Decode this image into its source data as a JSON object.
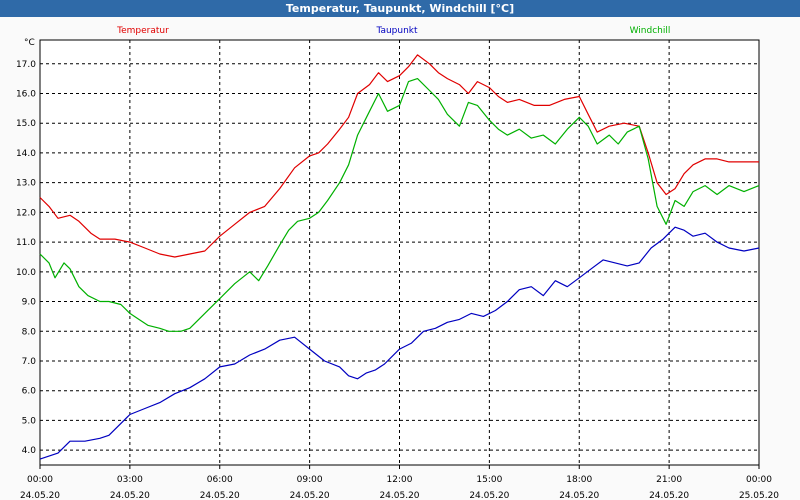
{
  "window": {
    "title": "Temperatur, Taupunkt, Windchill [°C]"
  },
  "colors": {
    "background": "#fafafa",
    "grid": "#000000",
    "temperature": "#e00000",
    "dewpoint": "#0000c0",
    "windchill": "#00b000"
  },
  "chart_data": {
    "type": "line",
    "title": "Temperatur, Taupunkt, Windchill [°C]",
    "ylabel": "°C",
    "ylim": [
      3.5,
      17.8
    ],
    "xlim": [
      0,
      24
    ],
    "yticks": [
      "4.0",
      "5.0",
      "6.0",
      "7.0",
      "8.0",
      "9.0",
      "10.0",
      "11.0",
      "12.0",
      "13.0",
      "14.0",
      "15.0",
      "16.0",
      "17.0"
    ],
    "xticks": [
      {
        "t": 0,
        "time": "00:00",
        "date": "24.05.20"
      },
      {
        "t": 3,
        "time": "03:00",
        "date": "24.05.20"
      },
      {
        "t": 6,
        "time": "06:00",
        "date": "24.05.20"
      },
      {
        "t": 9,
        "time": "09:00",
        "date": "24.05.20"
      },
      {
        "t": 12,
        "time": "12:00",
        "date": "24.05.20"
      },
      {
        "t": 15,
        "time": "15:00",
        "date": "24.05.20"
      },
      {
        "t": 18,
        "time": "18:00",
        "date": "24.05.20"
      },
      {
        "t": 21,
        "time": "21:00",
        "date": "24.05.20"
      },
      {
        "t": 24,
        "time": "00:00",
        "date": "25.05.20"
      }
    ],
    "grid": true,
    "series": [
      {
        "name": "Temperatur",
        "x": [
          0,
          0.3,
          0.6,
          1,
          1.3,
          1.7,
          2,
          2.5,
          3,
          3.5,
          4,
          4.5,
          5,
          5.5,
          6,
          6.5,
          7,
          7.5,
          8,
          8.5,
          9,
          9.3,
          9.6,
          10,
          10.3,
          10.6,
          11,
          11.3,
          11.6,
          12,
          12.3,
          12.6,
          13,
          13.3,
          13.6,
          14,
          14.3,
          14.6,
          15,
          15.3,
          15.6,
          16,
          16.5,
          17,
          17.5,
          18,
          18.3,
          18.6,
          19,
          19.5,
          20,
          20.3,
          20.6,
          20.9,
          21.2,
          21.5,
          21.8,
          22.2,
          22.6,
          23,
          23.5,
          24
        ],
        "values": [
          12.5,
          12.2,
          11.8,
          11.9,
          11.7,
          11.3,
          11.1,
          11.1,
          11.0,
          10.8,
          10.6,
          10.5,
          10.6,
          10.7,
          11.2,
          11.6,
          12.0,
          12.2,
          12.8,
          13.5,
          13.9,
          14.0,
          14.3,
          14.8,
          15.2,
          16.0,
          16.3,
          16.7,
          16.4,
          16.6,
          16.9,
          17.3,
          17.0,
          16.7,
          16.5,
          16.3,
          16.0,
          16.4,
          16.2,
          15.9,
          15.7,
          15.8,
          15.6,
          15.6,
          15.8,
          15.9,
          15.3,
          14.7,
          14.9,
          15.0,
          14.9,
          14.0,
          13.0,
          12.6,
          12.8,
          13.3,
          13.6,
          13.8,
          13.8,
          13.7,
          13.7,
          13.7
        ]
      },
      {
        "name": "Taupunkt",
        "x": [
          0,
          0.3,
          0.6,
          1,
          1.5,
          2,
          2.3,
          2.7,
          3,
          3.5,
          4,
          4.5,
          5,
          5.5,
          6,
          6.5,
          7,
          7.5,
          8,
          8.5,
          9,
          9.5,
          10,
          10.3,
          10.6,
          10.9,
          11.2,
          11.5,
          12,
          12.4,
          12.8,
          13.2,
          13.6,
          14,
          14.4,
          14.8,
          15.2,
          15.6,
          16,
          16.4,
          16.8,
          17.2,
          17.6,
          18,
          18.4,
          18.8,
          19.2,
          19.6,
          20,
          20.4,
          20.8,
          21.2,
          21.5,
          21.8,
          22.2,
          22.6,
          23,
          23.5,
          24
        ],
        "values": [
          3.7,
          3.8,
          3.9,
          4.3,
          4.3,
          4.4,
          4.5,
          4.9,
          5.2,
          5.4,
          5.6,
          5.9,
          6.1,
          6.4,
          6.8,
          6.9,
          7.2,
          7.4,
          7.7,
          7.8,
          7.4,
          7.0,
          6.8,
          6.5,
          6.4,
          6.6,
          6.7,
          6.9,
          7.4,
          7.6,
          8.0,
          8.1,
          8.3,
          8.4,
          8.6,
          8.5,
          8.7,
          9.0,
          9.4,
          9.5,
          9.2,
          9.7,
          9.5,
          9.8,
          10.1,
          10.4,
          10.3,
          10.2,
          10.3,
          10.8,
          11.1,
          11.5,
          11.4,
          11.2,
          11.3,
          11.0,
          10.8,
          10.7,
          10.8
        ]
      },
      {
        "name": "Windchill",
        "x": [
          0,
          0.3,
          0.5,
          0.8,
          1,
          1.3,
          1.6,
          2,
          2.3,
          2.7,
          3,
          3.3,
          3.6,
          4,
          4.3,
          4.7,
          5,
          5.5,
          6,
          6.5,
          7,
          7.3,
          7.6,
          8,
          8.3,
          8.6,
          9,
          9.3,
          9.6,
          10,
          10.3,
          10.6,
          11,
          11.3,
          11.6,
          12,
          12.3,
          12.6,
          13,
          13.3,
          13.6,
          14,
          14.3,
          14.6,
          15,
          15.3,
          15.6,
          16,
          16.4,
          16.8,
          17.2,
          17.6,
          18,
          18.3,
          18.6,
          19,
          19.3,
          19.6,
          20,
          20.3,
          20.6,
          20.9,
          21.2,
          21.5,
          21.8,
          22.2,
          22.6,
          23,
          23.5,
          24
        ],
        "values": [
          10.6,
          10.3,
          9.8,
          10.3,
          10.1,
          9.5,
          9.2,
          9.0,
          9.0,
          8.9,
          8.6,
          8.4,
          8.2,
          8.1,
          8.0,
          8.0,
          8.1,
          8.6,
          9.1,
          9.6,
          10.0,
          9.7,
          10.2,
          10.9,
          11.4,
          11.7,
          11.8,
          12.0,
          12.4,
          13.0,
          13.6,
          14.6,
          15.4,
          16.0,
          15.4,
          15.6,
          16.4,
          16.5,
          16.1,
          15.8,
          15.3,
          14.9,
          15.7,
          15.6,
          15.1,
          14.8,
          14.6,
          14.8,
          14.5,
          14.6,
          14.3,
          14.8,
          15.2,
          14.9,
          14.3,
          14.6,
          14.3,
          14.7,
          14.9,
          13.8,
          12.2,
          11.6,
          12.4,
          12.2,
          12.7,
          12.9,
          12.6,
          12.9,
          12.7,
          12.9
        ]
      }
    ]
  }
}
